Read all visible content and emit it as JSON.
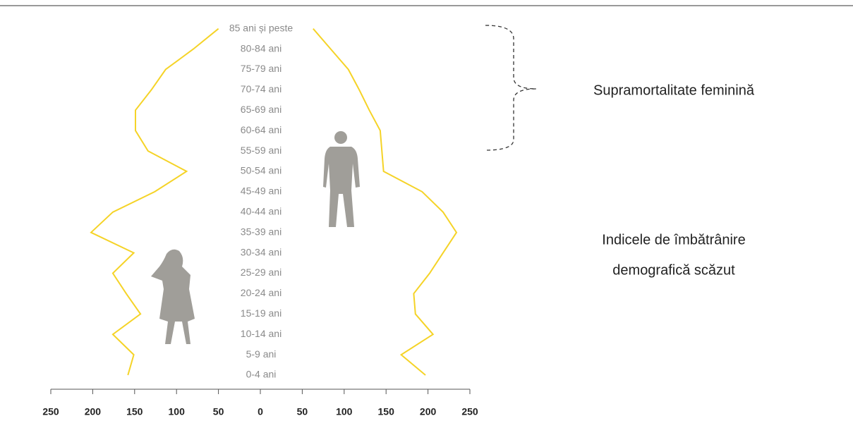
{
  "chart_data": {
    "type": "line",
    "categories": [
      "0-4 ani",
      "5-9 ani",
      "10-14 ani",
      "15-19 ani",
      "20-24 ani",
      "25-29 ani",
      "30-34 ani",
      "35-39 ani",
      "40-44 ani",
      "45-49 ani",
      "50-54 ani",
      "55-59 ani",
      "60-64 ani",
      "65-69 ani",
      "70-74 ani",
      "75-79 ani",
      "80-84 ani",
      "85 ani și peste"
    ],
    "series": [
      {
        "color": "#f5d327",
        "values": [
          -158,
          -151,
          -176,
          -143,
          -160,
          -176,
          -151,
          -202,
          -176,
          -126,
          -88,
          -134,
          -149,
          -149,
          -130,
          -113,
          -80,
          -50
        ]
      },
      {
        "color": "#f5d327",
        "values": [
          197,
          168,
          206,
          185,
          183,
          202,
          218,
          234,
          218,
          193,
          147,
          145,
          143,
          130,
          118,
          105,
          84,
          63
        ]
      }
    ],
    "xlim": [
      -250,
      250
    ],
    "xticks": [
      {
        "value": -250,
        "label": "250"
      },
      {
        "value": -200,
        "label": "200"
      },
      {
        "value": -150,
        "label": "150"
      },
      {
        "value": -100,
        "label": "100"
      },
      {
        "value": -50,
        "label": "50"
      },
      0,
      50,
      100,
      150,
      200,
      250
    ],
    "annotations": [
      "Supramortalitate feminină",
      "Indicele de îmbătrânire",
      "demografică scăzut"
    ]
  }
}
